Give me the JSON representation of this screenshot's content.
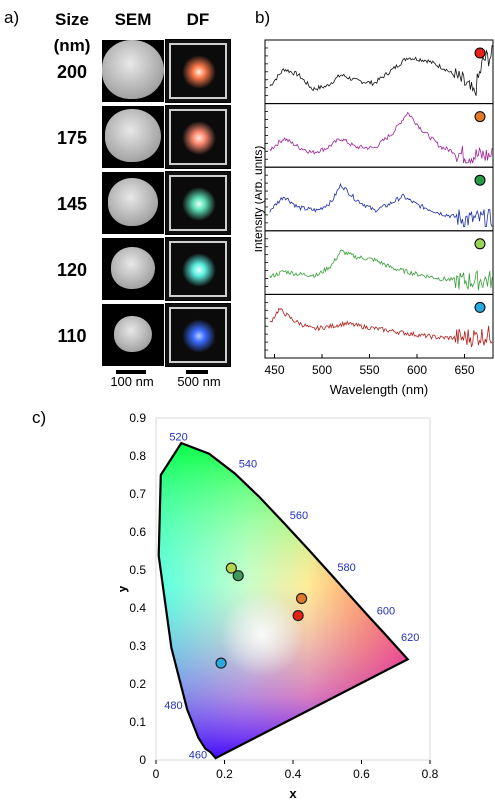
{
  "panel_a": {
    "label": "a)",
    "col_size_title": "Size",
    "col_size_unit": "(nm)",
    "col_sem_title": "SEM",
    "col_df_title": "DF",
    "rows": [
      {
        "size": "200",
        "df_color": "#ff7a4a",
        "df_core": "#fff2e6"
      },
      {
        "size": "175",
        "df_color": "#ff8a70",
        "df_core": "#ffe9e0"
      },
      {
        "size": "145",
        "df_color": "#5fe0b8",
        "df_core": "#e8fff6"
      },
      {
        "size": "120",
        "df_color": "#5af0e0",
        "df_core": "#e9fffc"
      },
      {
        "size": "110",
        "df_color": "#3a6cff",
        "df_core": "#b8ccff"
      }
    ],
    "sem_scale_label": "100 nm",
    "df_scale_label": "500 nm"
  },
  "panel_b": {
    "label": "b)",
    "chart_data": {
      "type": "line",
      "xlabel": "Wavelength (nm)",
      "ylabel": "Intensity (Arb. units)",
      "xlim": [
        440,
        680
      ],
      "xticks": [
        450,
        500,
        550,
        600,
        650
      ],
      "series": [
        {
          "marker_color": "#e8201c",
          "line_color": "#111111",
          "peaks": [
            [
              460,
              0.55
            ],
            [
              520,
              0.45
            ],
            [
              590,
              0.75
            ]
          ],
          "values": [
            [
              445,
              0.25
            ],
            [
              460,
              0.55
            ],
            [
              475,
              0.45
            ],
            [
              490,
              0.2
            ],
            [
              505,
              0.25
            ],
            [
              520,
              0.45
            ],
            [
              535,
              0.35
            ],
            [
              555,
              0.3
            ],
            [
              575,
              0.55
            ],
            [
              590,
              0.75
            ],
            [
              610,
              0.7
            ],
            [
              630,
              0.55
            ],
            [
              650,
              0.3
            ],
            [
              660,
              0.1
            ],
            [
              670,
              0.7
            ],
            [
              680,
              0.8
            ]
          ]
        },
        {
          "marker_color": "#e07a28",
          "line_color": "#a0259a",
          "values": [
            [
              445,
              0.25
            ],
            [
              460,
              0.45
            ],
            [
              475,
              0.3
            ],
            [
              490,
              0.2
            ],
            [
              505,
              0.28
            ],
            [
              520,
              0.45
            ],
            [
              535,
              0.3
            ],
            [
              555,
              0.28
            ],
            [
              575,
              0.55
            ],
            [
              590,
              0.9
            ],
            [
              605,
              0.6
            ],
            [
              625,
              0.3
            ],
            [
              650,
              0.15
            ],
            [
              680,
              0.15
            ]
          ]
        },
        {
          "marker_color": "#2a9a4a",
          "line_color": "#1f2ea8",
          "values": [
            [
              445,
              0.3
            ],
            [
              460,
              0.55
            ],
            [
              475,
              0.35
            ],
            [
              495,
              0.3
            ],
            [
              510,
              0.45
            ],
            [
              520,
              0.75
            ],
            [
              535,
              0.5
            ],
            [
              555,
              0.3
            ],
            [
              570,
              0.4
            ],
            [
              585,
              0.55
            ],
            [
              600,
              0.4
            ],
            [
              625,
              0.25
            ],
            [
              650,
              0.15
            ],
            [
              680,
              0.15
            ]
          ]
        },
        {
          "marker_color": "#9bd35a",
          "line_color": "#3aa03a",
          "values": [
            [
              445,
              0.25
            ],
            [
              460,
              0.35
            ],
            [
              475,
              0.3
            ],
            [
              495,
              0.28
            ],
            [
              510,
              0.45
            ],
            [
              520,
              0.7
            ],
            [
              535,
              0.6
            ],
            [
              555,
              0.55
            ],
            [
              575,
              0.4
            ],
            [
              600,
              0.3
            ],
            [
              625,
              0.22
            ],
            [
              650,
              0.18
            ],
            [
              680,
              0.2
            ]
          ]
        },
        {
          "marker_color": "#2aa8e0",
          "line_color": "#b0201c",
          "values": [
            [
              445,
              0.55
            ],
            [
              455,
              0.8
            ],
            [
              470,
              0.6
            ],
            [
              490,
              0.45
            ],
            [
              510,
              0.5
            ],
            [
              525,
              0.55
            ],
            [
              540,
              0.5
            ],
            [
              560,
              0.45
            ],
            [
              580,
              0.4
            ],
            [
              600,
              0.35
            ],
            [
              625,
              0.3
            ],
            [
              650,
              0.3
            ],
            [
              680,
              0.35
            ]
          ]
        }
      ]
    }
  },
  "panel_c": {
    "label": "c)",
    "chart_data": {
      "type": "scatter",
      "xlabel": "x",
      "ylabel": "y",
      "xlim": [
        0,
        0.8
      ],
      "ylim": [
        0,
        0.9
      ],
      "xticks": [
        "0",
        "0.2",
        "0.4",
        "0.6",
        "0.8"
      ],
      "yticks": [
        "0",
        "0.1",
        "0.2",
        "0.3",
        "0.4",
        "0.5",
        "0.6",
        "0.7",
        "0.8",
        "0.9"
      ],
      "wavelength_labels": [
        "460",
        "480",
        "520",
        "540",
        "560",
        "580",
        "600",
        "620"
      ],
      "points": [
        {
          "x": 0.22,
          "y": 0.505,
          "color": "#b6d64a"
        },
        {
          "x": 0.24,
          "y": 0.485,
          "color": "#3e9a5a"
        },
        {
          "x": 0.425,
          "y": 0.425,
          "color": "#e07a28"
        },
        {
          "x": 0.415,
          "y": 0.38,
          "color": "#e8201c"
        },
        {
          "x": 0.19,
          "y": 0.255,
          "color": "#2aa8e0"
        }
      ]
    }
  }
}
